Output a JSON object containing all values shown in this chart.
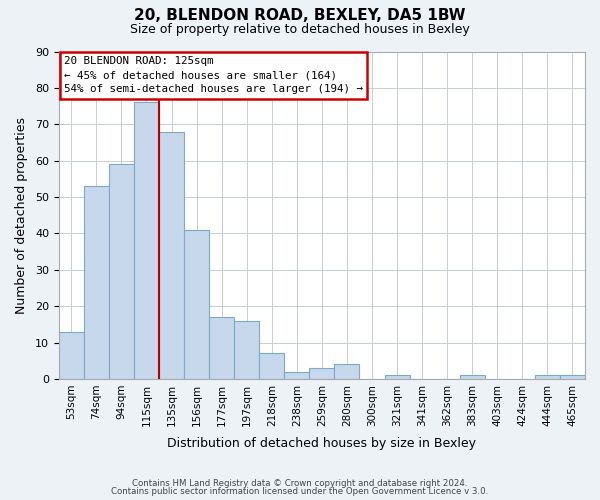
{
  "title1": "20, BLENDON ROAD, BEXLEY, DA5 1BW",
  "title2": "Size of property relative to detached houses in Bexley",
  "xlabel": "Distribution of detached houses by size in Bexley",
  "ylabel": "Number of detached properties",
  "bar_labels": [
    "53sqm",
    "74sqm",
    "94sqm",
    "115sqm",
    "135sqm",
    "156sqm",
    "177sqm",
    "197sqm",
    "218sqm",
    "238sqm",
    "259sqm",
    "280sqm",
    "300sqm",
    "321sqm",
    "341sqm",
    "362sqm",
    "383sqm",
    "403sqm",
    "424sqm",
    "444sqm",
    "465sqm"
  ],
  "bar_values": [
    13,
    53,
    59,
    76,
    68,
    41,
    17,
    16,
    7,
    2,
    3,
    4,
    0,
    1,
    0,
    0,
    1,
    0,
    0,
    1,
    1
  ],
  "bar_color": "#c8d8ec",
  "bar_edge_color": "#7aaac8",
  "vline_color": "#bb0000",
  "ylim": [
    0,
    90
  ],
  "yticks": [
    0,
    10,
    20,
    30,
    40,
    50,
    60,
    70,
    80,
    90
  ],
  "annotation_line1": "20 BLENDON ROAD: 125sqm",
  "annotation_line2": "← 45% of detached houses are smaller (164)",
  "annotation_line3": "54% of semi-detached houses are larger (194) →",
  "annotation_box_color": "#ffffff",
  "annotation_box_edge_color": "#cc0000",
  "footer1": "Contains HM Land Registry data © Crown copyright and database right 2024.",
  "footer2": "Contains public sector information licensed under the Open Government Licence v 3.0.",
  "bg_color": "#edf2f7",
  "plot_bg_color": "#ffffff",
  "grid_color": "#c5cdd5"
}
